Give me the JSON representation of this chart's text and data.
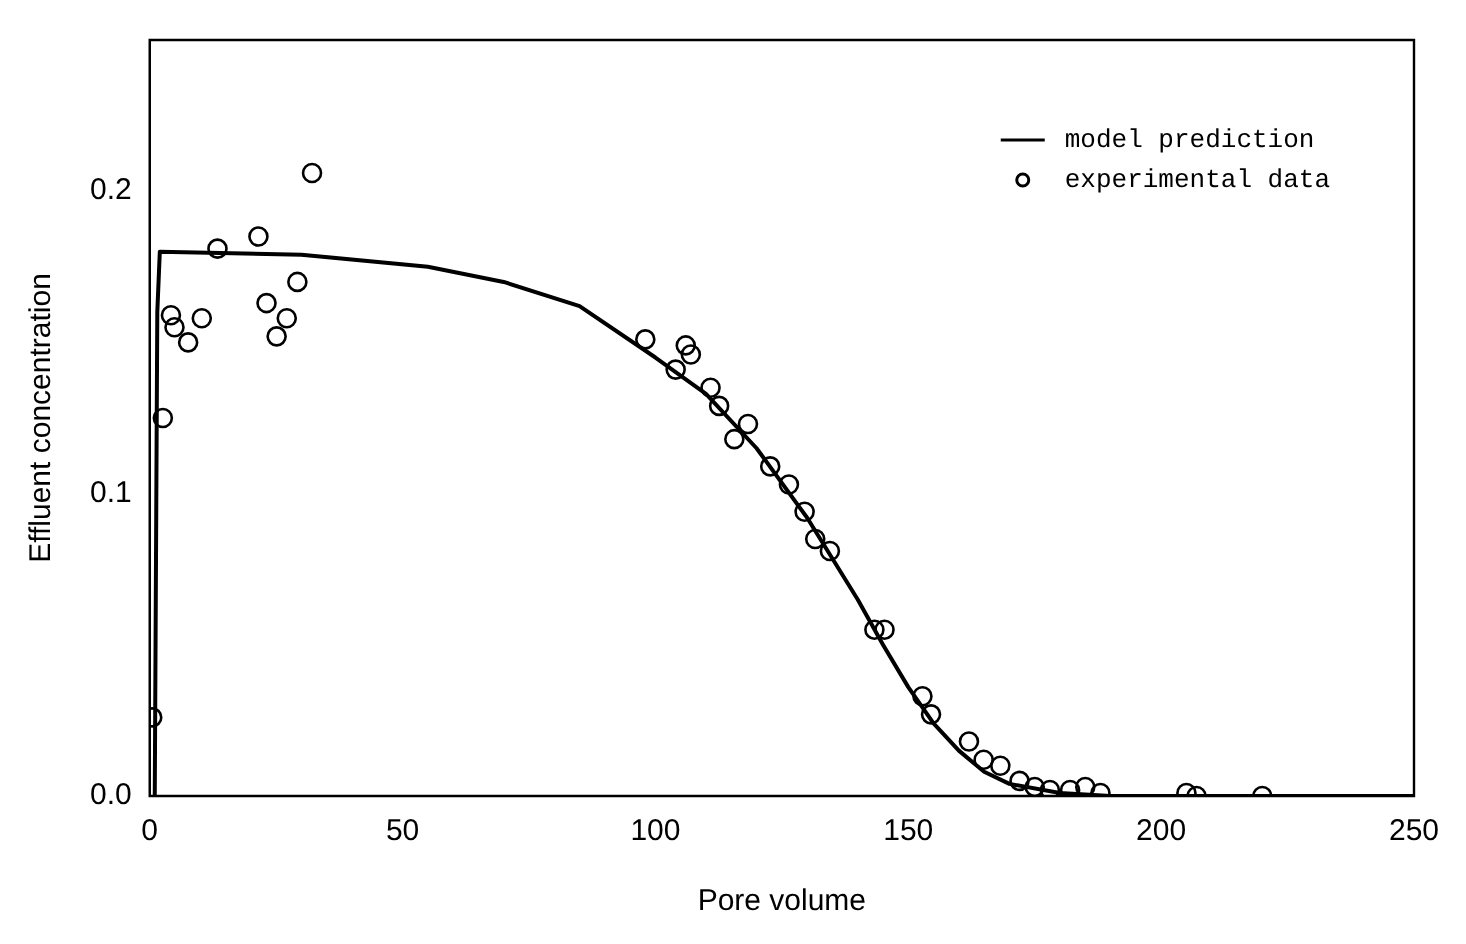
{
  "chart_data": {
    "type": "scatter",
    "xlabel": "Pore volume",
    "ylabel": "Effluent concentration",
    "xlim": [
      0,
      250
    ],
    "xticks": [
      0,
      50,
      100,
      150,
      200,
      250
    ],
    "ylim": [
      0,
      0.25
    ],
    "yticks": [
      {
        "value": 0,
        "label": "0.0"
      },
      0.1,
      0.2
    ],
    "grid": false,
    "legend": "top right",
    "series": [
      {
        "name": "model prediction",
        "type": "line",
        "color": "#000000",
        "marker": "none",
        "line_style": "solid",
        "x": [
          1,
          1.5,
          2,
          30,
          55,
          70,
          85,
          100,
          110,
          120,
          130,
          140,
          145,
          150,
          155,
          160,
          165,
          170,
          180,
          190,
          250
        ],
        "values": [
          0,
          0.16,
          0.18,
          0.179,
          0.175,
          0.17,
          0.162,
          0.145,
          0.133,
          0.115,
          0.092,
          0.065,
          0.05,
          0.036,
          0.024,
          0.015,
          0.008,
          0.004,
          0.001,
          0,
          0
        ]
      },
      {
        "name": "experimental data",
        "type": "scatter",
        "color": "#000000",
        "marker": "circle",
        "x": [
          0.5,
          2.6,
          4.2,
          4.9,
          7.6,
          10.3,
          13.4,
          21.5,
          23.1,
          25.1,
          27.1,
          29.2,
          32.1,
          98,
          104,
          106,
          107,
          110.9,
          112.6,
          115.6,
          118.3,
          122.7,
          126.4,
          129.5,
          131.6,
          134.5,
          143.3,
          145.3,
          152.8,
          154.5,
          162,
          164.9,
          168.2,
          172,
          175,
          178,
          182,
          185,
          188,
          205,
          207,
          220
        ],
        "values": [
          0.026,
          0.125,
          0.159,
          0.155,
          0.15,
          0.158,
          0.181,
          0.185,
          0.163,
          0.152,
          0.158,
          0.17,
          0.206,
          0.151,
          0.141,
          0.149,
          0.146,
          0.135,
          0.129,
          0.118,
          0.123,
          0.109,
          0.103,
          0.094,
          0.085,
          0.081,
          0.055,
          0.055,
          0.033,
          0.027,
          0.018,
          0.012,
          0.01,
          0.005,
          0.003,
          0.002,
          0.002,
          0.003,
          0.001,
          0.001,
          0,
          0
        ]
      }
    ]
  }
}
